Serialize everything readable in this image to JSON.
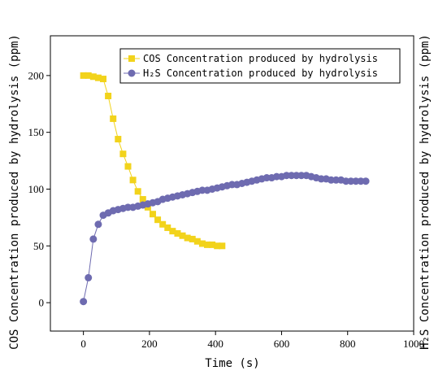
{
  "chart_data": {
    "type": "line",
    "xlabel": "Time (s)",
    "ylabel_left": "COS Concentration produced by hydrolysis (ppm)",
    "ylabel_right": "H₂S Concentration produced by hydrolysis (ppm)",
    "xlim": [
      -100,
      1000
    ],
    "ylim": [
      -25,
      235
    ],
    "xticks": [
      0,
      200,
      400,
      600,
      800,
      1000
    ],
    "yticks": [
      0,
      50,
      100,
      150,
      200
    ],
    "legend_position": "top-right",
    "series": [
      {
        "name": "COS Concentration produced by hydrolysis",
        "color": "#F2D31B",
        "marker": "square",
        "x": [
          0,
          15,
          30,
          45,
          60,
          75,
          90,
          105,
          120,
          135,
          150,
          165,
          180,
          195,
          210,
          225,
          240,
          255,
          270,
          285,
          300,
          315,
          330,
          345,
          360,
          375,
          390,
          405,
          420
        ],
        "y": [
          200,
          200,
          199,
          198,
          197,
          182,
          162,
          144,
          131,
          120,
          108,
          98,
          91,
          84,
          78,
          73,
          69,
          66,
          63,
          61,
          59,
          57,
          56,
          54,
          52,
          51,
          51,
          50,
          50
        ]
      },
      {
        "name": "H₂S Concentration produced by hydrolysis",
        "color": "#6E6BB0",
        "marker": "circle",
        "x": [
          0,
          15,
          30,
          45,
          60,
          75,
          90,
          105,
          120,
          135,
          150,
          165,
          180,
          195,
          210,
          225,
          240,
          255,
          270,
          285,
          300,
          315,
          330,
          345,
          360,
          375,
          390,
          405,
          420,
          435,
          450,
          465,
          480,
          495,
          510,
          525,
          540,
          555,
          570,
          585,
          600,
          615,
          630,
          645,
          660,
          675,
          690,
          705,
          720,
          735,
          750,
          765,
          780,
          795,
          810,
          825,
          840,
          855
        ],
        "y": [
          1,
          22,
          56,
          69,
          77,
          79,
          81,
          82,
          83,
          84,
          84,
          85,
          86,
          87,
          88,
          89,
          91,
          92,
          93,
          94,
          95,
          96,
          97,
          98,
          99,
          99,
          100,
          101,
          102,
          103,
          104,
          104,
          105,
          106,
          107,
          108,
          109,
          110,
          110,
          111,
          111,
          112,
          112,
          112,
          112,
          112,
          111,
          110,
          109,
          109,
          108,
          108,
          108,
          107,
          107,
          107,
          107,
          107
        ]
      }
    ]
  }
}
